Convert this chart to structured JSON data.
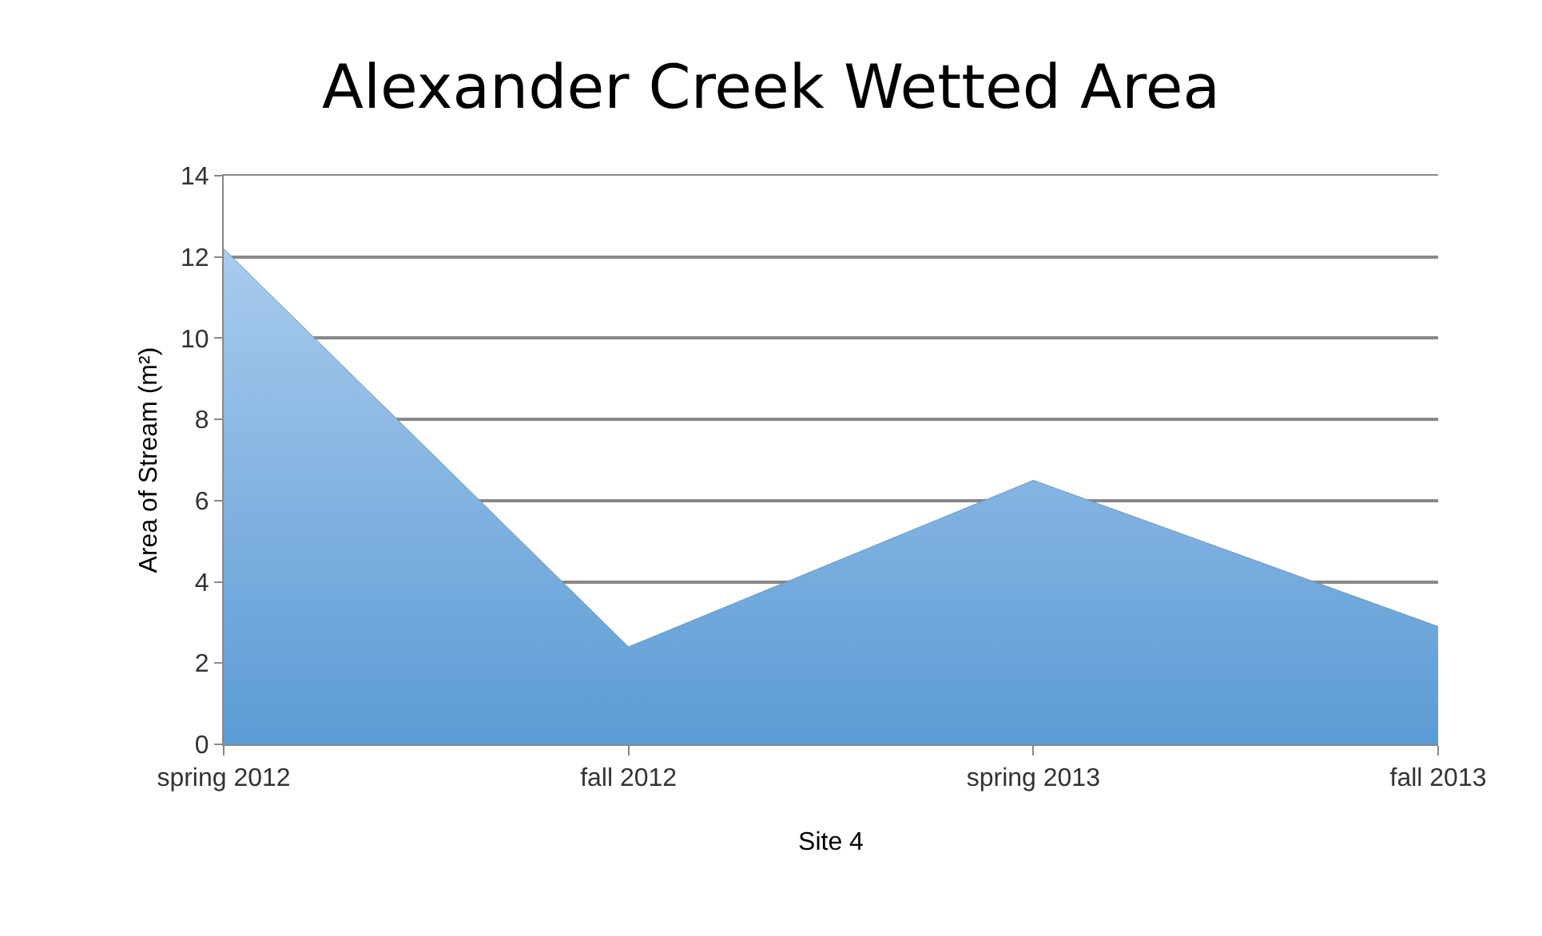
{
  "chart_data": {
    "type": "area",
    "title": "Alexander Creek Wetted Area",
    "xlabel": "Site 4",
    "ylabel": "Area of Stream (m²)",
    "categories": [
      "spring 2012",
      "fall 2012",
      "spring 2013",
      "fall 2013"
    ],
    "series": [
      {
        "color": "#5b9bd5",
        "values": [
          12.2,
          2.4,
          6.5,
          2.9
        ]
      }
    ],
    "ylim": [
      0,
      14
    ],
    "yticks": [
      0,
      2,
      4,
      6,
      8,
      10,
      12,
      14
    ],
    "grid": "y"
  }
}
